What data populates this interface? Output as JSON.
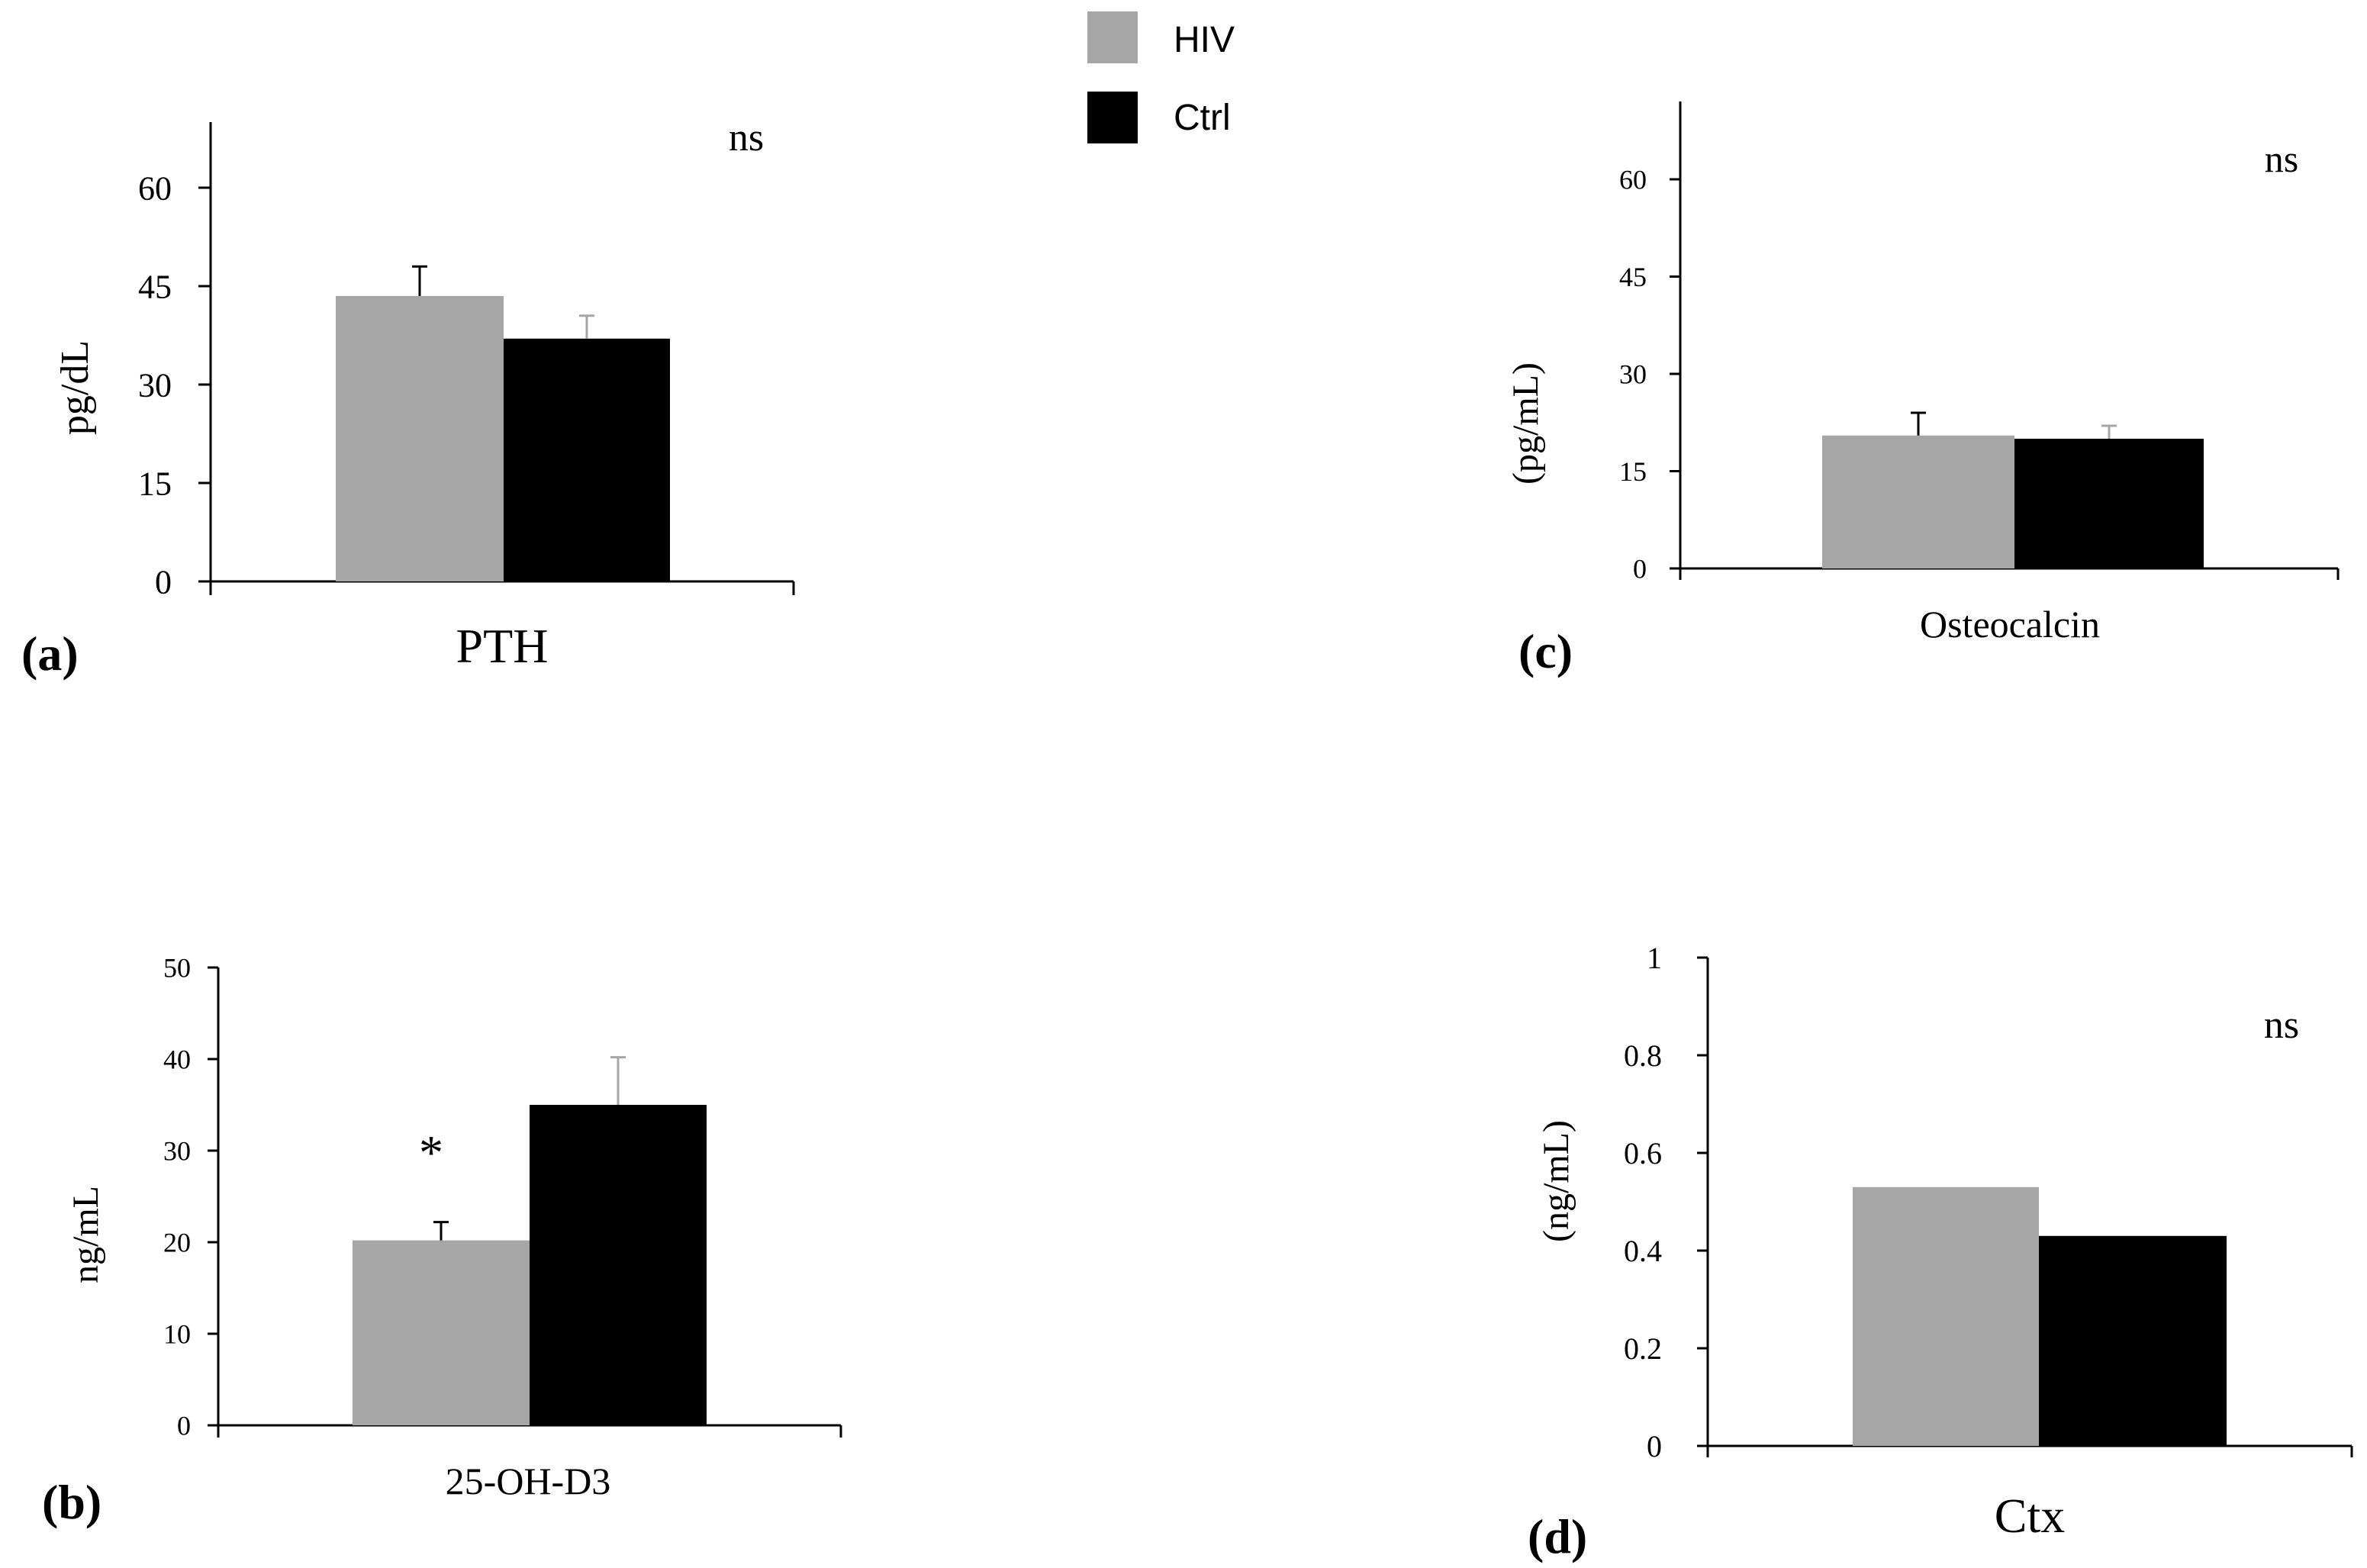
{
  "legend": {
    "items": [
      {
        "label": "HIV",
        "color": "#a6a6a6"
      },
      {
        "label": "Ctrl",
        "color": "#000000"
      }
    ]
  },
  "chart_data": [
    {
      "panel": "(a)",
      "type": "bar",
      "categories": [
        "PTH"
      ],
      "series": [
        {
          "name": "HIV",
          "values": [
            43.5
          ],
          "error": [
            4.5
          ]
        },
        {
          "name": "Ctrl",
          "values": [
            37.0
          ],
          "error": [
            3.5
          ]
        }
      ],
      "title": "",
      "xlabel": "PTH",
      "ylabel": "pg/dL",
      "ylim": [
        0,
        70
      ],
      "yticks": [
        0,
        15,
        30,
        45,
        60
      ],
      "ytick_labels": [
        "0",
        "15",
        "30",
        "45",
        "60"
      ],
      "annotation": "ns",
      "marker": "",
      "grid": false
    },
    {
      "panel": "(b)",
      "type": "bar",
      "categories": [
        "25-OH-D3"
      ],
      "series": [
        {
          "name": "HIV",
          "values": [
            20.2
          ],
          "error": [
            2.0
          ]
        },
        {
          "name": "Ctrl",
          "values": [
            35.0
          ],
          "error": [
            5.2
          ]
        }
      ],
      "title": "",
      "xlabel": "25-OH-D3",
      "ylabel": "ng/mL",
      "ylim": [
        0,
        50
      ],
      "yticks": [
        0,
        10,
        20,
        30,
        40,
        50
      ],
      "ytick_labels": [
        "0",
        "10",
        "20",
        "30",
        "40",
        "50"
      ],
      "annotation": "",
      "marker": "*",
      "grid": false
    },
    {
      "panel": "(c)",
      "type": "bar",
      "categories": [
        "Osteocalcin"
      ],
      "series": [
        {
          "name": "HIV",
          "values": [
            20.5
          ],
          "error": [
            3.5
          ]
        },
        {
          "name": "Ctrl",
          "values": [
            20.0
          ],
          "error": [
            2.0
          ]
        }
      ],
      "title": "",
      "xlabel": "Osteocalcin",
      "ylabel": "(pg/mL)",
      "ylim": [
        0,
        72
      ],
      "yticks": [
        0,
        15,
        30,
        45,
        60
      ],
      "ytick_labels": [
        "0",
        "15",
        "30",
        "45",
        "60"
      ],
      "annotation": "ns",
      "marker": "",
      "grid": false
    },
    {
      "panel": "(d)",
      "type": "bar",
      "categories": [
        "Ctx"
      ],
      "series": [
        {
          "name": "HIV",
          "values": [
            0.53
          ],
          "error": [
            0
          ]
        },
        {
          "name": "Ctrl",
          "values": [
            0.43
          ],
          "error": [
            0
          ]
        }
      ],
      "title": "",
      "xlabel": "Ctx",
      "ylabel": "(ng/mL)",
      "ylim": [
        0,
        1
      ],
      "yticks": [
        0,
        0.2,
        0.4,
        0.6,
        0.8,
        1
      ],
      "ytick_labels": [
        "0",
        "0.2",
        "0.4",
        "0.6",
        "0.8",
        "1"
      ],
      "annotation": "ns",
      "marker": "",
      "grid": false
    }
  ]
}
